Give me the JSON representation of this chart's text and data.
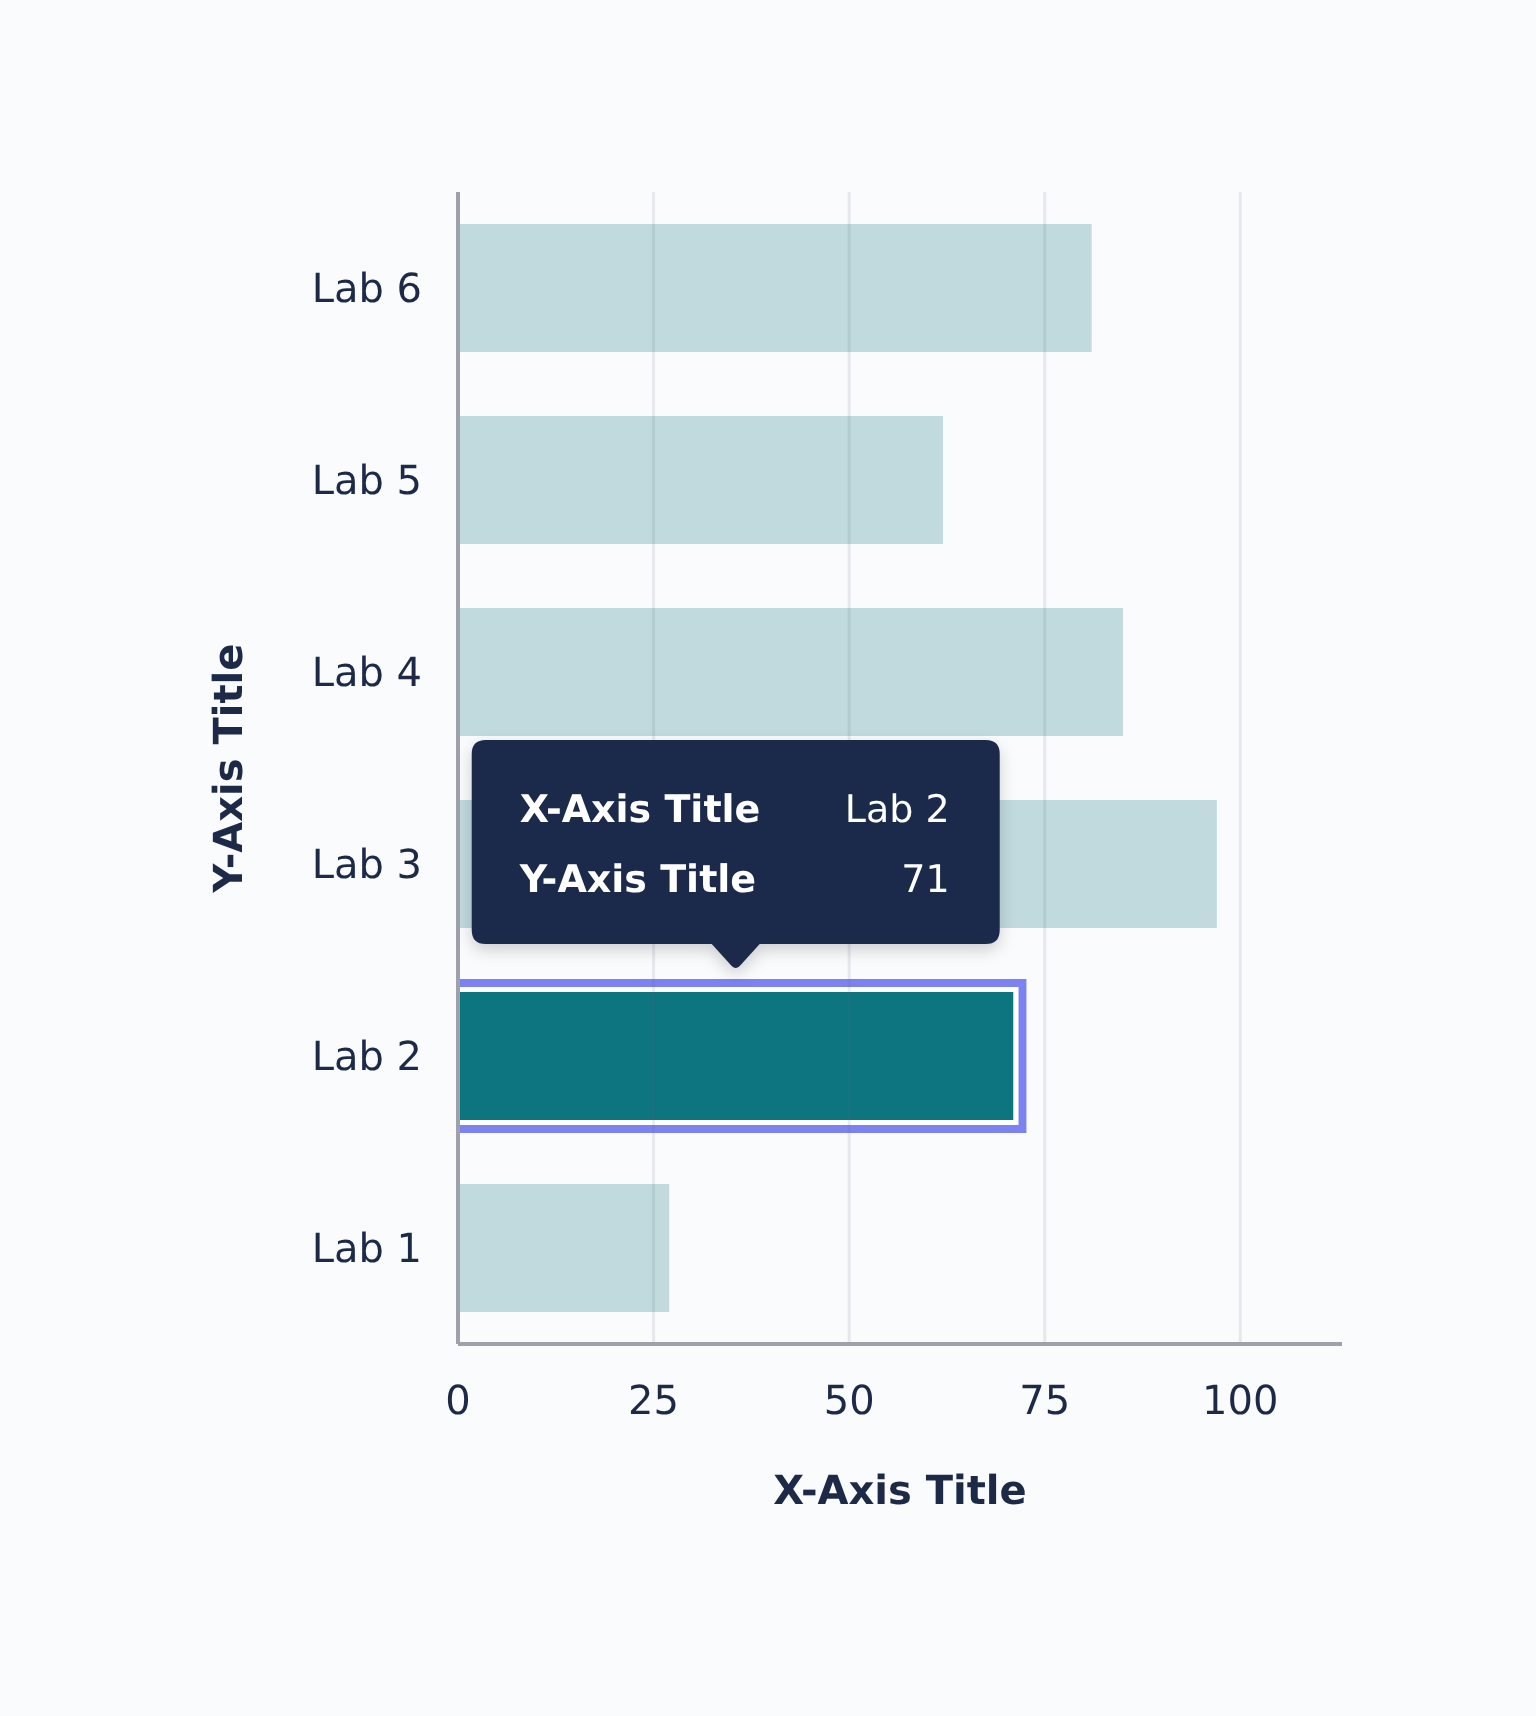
{
  "chart_data": {
    "type": "bar",
    "orientation": "horizontal",
    "xlabel": "X-Axis Title",
    "ylabel": "Y-Axis Title",
    "categories": [
      "Lab 6",
      "Lab 5",
      "Lab 4",
      "Lab 3",
      "Lab 2",
      "Lab 1"
    ],
    "values": [
      81,
      62,
      85,
      97,
      71,
      27
    ],
    "colors": [
      "#c1dade",
      "#c1dade",
      "#c1dade",
      "#c1dade",
      "#0e7480",
      "#c1dade"
    ],
    "xlim": [
      0,
      113
    ],
    "xticks": [
      0,
      25,
      50,
      75,
      100
    ],
    "grid": "x",
    "annotations": [
      "X-Axis Title",
      "Lab 2",
      "Y-Axis Title",
      "71"
    ]
  }
}
